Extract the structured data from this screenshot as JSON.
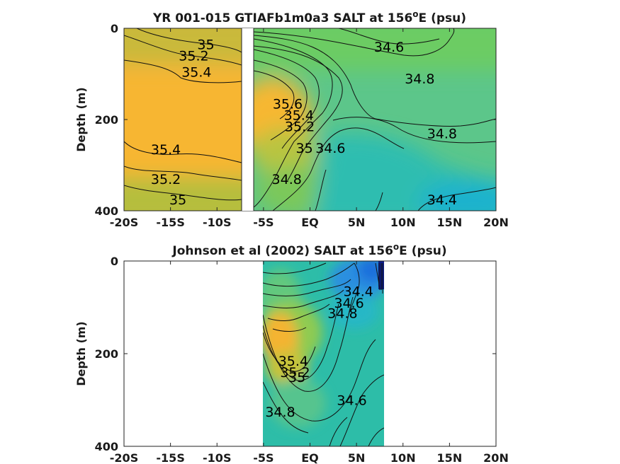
{
  "figure": {
    "colors": {
      "high": "#f5b731",
      "mid": "#8cc94a",
      "low": "#2bbfb0",
      "lowest": "#2a8fe0",
      "min": "#0b1d8a",
      "contour": "#111111",
      "blank": "#ffffff"
    }
  },
  "chart_data": [
    {
      "type": "contour",
      "title": "YR 001-015 GTIAFb1m0a3 SALT at 156°E (psu)",
      "title_main": "YR 001-015 GTIAFb1m0a3 SALT at 156",
      "title_sup": "o",
      "title_tail": "E (psu)",
      "xlabel": "",
      "ylabel": "Depth (m)",
      "xlim": [
        -20,
        20
      ],
      "ylim": [
        0,
        400
      ],
      "y_reversed": true,
      "xticks": [
        -20,
        -15,
        -10,
        -5,
        0,
        5,
        10,
        15,
        20
      ],
      "xticklabels": [
        "-20S",
        "-15S",
        "-10S",
        "-5S",
        "EQ",
        "5N",
        "10N",
        "15N",
        "20N"
      ],
      "yticks": [
        0,
        200,
        400
      ],
      "yticklabels": [
        "0",
        "200",
        "400"
      ],
      "grid": false,
      "data_gap": [
        -7.5,
        -6.5
      ],
      "contour_labels": [
        {
          "text": "35",
          "x": -11.2,
          "y": 35
        },
        {
          "text": "35.2",
          "x": -12.5,
          "y": 60
        },
        {
          "text": "35.4",
          "x": -12.2,
          "y": 95
        },
        {
          "text": "35.6",
          "x": -2.4,
          "y": 165
        },
        {
          "text": "35.4",
          "x": -1.2,
          "y": 190
        },
        {
          "text": "35.2",
          "x": -1.1,
          "y": 215
        },
        {
          "text": "35",
          "x": -0.6,
          "y": 262
        },
        {
          "text": "34.6",
          "x": 2.2,
          "y": 262
        },
        {
          "text": "35.4",
          "x": -15.5,
          "y": 265
        },
        {
          "text": "35.2",
          "x": -15.5,
          "y": 330
        },
        {
          "text": "35",
          "x": -14.2,
          "y": 375
        },
        {
          "text": "34.8",
          "x": -2.5,
          "y": 330
        },
        {
          "text": "34.6",
          "x": 8.5,
          "y": 40
        },
        {
          "text": "34.8",
          "x": 11.8,
          "y": 110
        },
        {
          "text": "34.8",
          "x": 14.2,
          "y": 230
        },
        {
          "text": "34.4",
          "x": 14.2,
          "y": 375
        }
      ]
    },
    {
      "type": "contour",
      "title": "Johnson et al (2002) SALT at 156°E (psu)",
      "title_main": "Johnson et al (2002) SALT at 156",
      "title_sup": "o",
      "title_tail": "E (psu)",
      "xlabel": "",
      "ylabel": "Depth (m)",
      "xlim": [
        -20,
        20
      ],
      "ylim": [
        0,
        400
      ],
      "y_reversed": true,
      "xticks": [
        -20,
        -15,
        -10,
        -5,
        0,
        5,
        10,
        15,
        20
      ],
      "xticklabels": [
        "-20S",
        "-15S",
        "-10S",
        "-5S",
        "EQ",
        "5N",
        "10N",
        "15N",
        "20N"
      ],
      "yticks": [
        0,
        200,
        400
      ],
      "yticklabels": [
        "0",
        "200",
        "400"
      ],
      "grid": false,
      "data_extent_x": [
        -5,
        8
      ],
      "contour_labels": [
        {
          "text": "34.4",
          "x": 5.2,
          "y": 65
        },
        {
          "text": "34.6",
          "x": 4.2,
          "y": 90
        },
        {
          "text": "34.8",
          "x": 3.5,
          "y": 112
        },
        {
          "text": "35.4",
          "x": -1.8,
          "y": 215
        },
        {
          "text": "35.2",
          "x": -1.6,
          "y": 240
        },
        {
          "text": "35",
          "x": -1.4,
          "y": 250
        },
        {
          "text": "34.8",
          "x": -3.2,
          "y": 325
        },
        {
          "text": "34.6",
          "x": 4.5,
          "y": 300
        }
      ]
    }
  ]
}
